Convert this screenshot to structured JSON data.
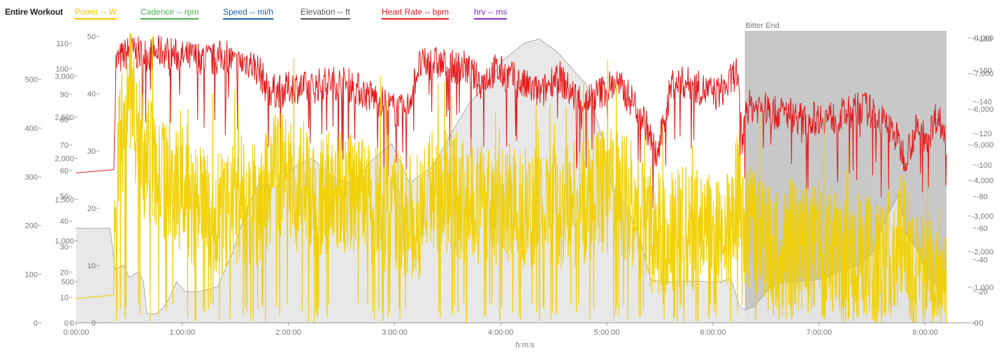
{
  "legend": {
    "title": "Entire Workout",
    "items": [
      {
        "label": "Power  -- W",
        "color": "#f5c400"
      },
      {
        "label": "Cadence  -- rpm",
        "color": "#4caf50"
      },
      {
        "label": "Speed  -- mi/h",
        "color": "#1f5fa8"
      },
      {
        "label": "Elevation  -- ft",
        "color": "#555555"
      },
      {
        "label": "Heart Rate  -- bpm",
        "color": "#e31a1c"
      },
      {
        "label": "hrv  -- ms",
        "color": "#7e2fc4"
      }
    ]
  },
  "chart_data": {
    "type": "line",
    "xlabel": "h:m:s",
    "x_unit": "seconds elapsed",
    "x_ticks": [
      "0:00:00",
      "1:00:00",
      "2:00:00",
      "3:00:00",
      "4:00:00",
      "5:00:00",
      "6:00:00",
      "7:00:00",
      "8:00:00"
    ],
    "xlim": [
      0,
      29520
    ],
    "highlight": {
      "label": "Bitter End",
      "start": 22680,
      "end": 29520,
      "color": "#c8c8c8"
    },
    "axes": {
      "power": {
        "ticks": [
          "0",
          "100",
          "200",
          "300",
          "400",
          "500"
        ],
        "range": [
          0,
          600
        ]
      },
      "cadence": {
        "ticks": [
          "0",
          "10",
          "20",
          "30",
          "40",
          "50",
          "60",
          "70",
          "80",
          "90",
          "100",
          "110"
        ],
        "range": [
          0,
          115
        ]
      },
      "elevation": {
        "ticks": [
          "0",
          "500",
          "1,000",
          "1,500",
          "2,000",
          "2,500",
          "3,000"
        ],
        "range": [
          0,
          3550
        ]
      },
      "speed": {
        "ticks": [
          "0",
          "10",
          "20",
          "30",
          "40",
          "50"
        ],
        "range": [
          0,
          51
        ]
      },
      "heart_rate": {
        "ticks": [
          "0",
          "20",
          "40",
          "60",
          "80",
          "100",
          "120",
          "140",
          "160",
          "180"
        ],
        "range": [
          0,
          185
        ]
      },
      "hrv": {
        "ticks": [
          "0",
          "1,000",
          "2,000",
          "3,000",
          "4,000",
          "5,000",
          "6,000",
          "7,000",
          "8,000"
        ],
        "range": [
          0,
          8200
        ]
      }
    },
    "series": [
      {
        "name": "Elevation",
        "axis": "elevation",
        "color": "#9a9a9a",
        "fill": "#e6e6e6",
        "points": [
          [
            0,
            1150
          ],
          [
            1150,
            1150
          ],
          [
            1320,
            650
          ],
          [
            1600,
            700
          ],
          [
            1800,
            550
          ],
          [
            2100,
            620
          ],
          [
            2280,
            500
          ],
          [
            2400,
            110
          ],
          [
            2700,
            110
          ],
          [
            2950,
            180
          ],
          [
            3150,
            300
          ],
          [
            3400,
            500
          ],
          [
            3700,
            380
          ],
          [
            4200,
            380
          ],
          [
            4800,
            440
          ],
          [
            5300,
            850
          ],
          [
            5800,
            1400
          ],
          [
            6200,
            1700
          ],
          [
            6800,
            1650
          ],
          [
            7400,
            1900
          ],
          [
            8000,
            2000
          ],
          [
            8600,
            1800
          ],
          [
            9200,
            1700
          ],
          [
            9600,
            1800
          ],
          [
            10100,
            2000
          ],
          [
            10700,
            2180
          ],
          [
            11000,
            1950
          ],
          [
            11300,
            1700
          ],
          [
            11700,
            1800
          ],
          [
            12100,
            1900
          ],
          [
            12800,
            2350
          ],
          [
            13300,
            2650
          ],
          [
            13900,
            2900
          ],
          [
            14500,
            3200
          ],
          [
            15200,
            3400
          ],
          [
            15700,
            3450
          ],
          [
            16300,
            3300
          ],
          [
            16800,
            3100
          ],
          [
            17300,
            2900
          ],
          [
            17800,
            2300
          ],
          [
            18200,
            1650
          ],
          [
            18700,
            1400
          ],
          [
            19100,
            1050
          ],
          [
            19500,
            520
          ],
          [
            19900,
            500
          ],
          [
            20400,
            500
          ],
          [
            20900,
            510
          ],
          [
            21400,
            500
          ],
          [
            21900,
            500
          ],
          [
            22200,
            550
          ],
          [
            22500,
            200
          ],
          [
            22700,
            160
          ],
          [
            23000,
            200
          ],
          [
            23500,
            420
          ],
          [
            24000,
            500
          ],
          [
            24500,
            500
          ],
          [
            25000,
            520
          ],
          [
            25500,
            560
          ],
          [
            26000,
            650
          ],
          [
            26500,
            700
          ],
          [
            27000,
            850
          ],
          [
            27500,
            1300
          ],
          [
            27900,
            1560
          ],
          [
            28150,
            1100
          ],
          [
            28600,
            850
          ],
          [
            28900,
            550
          ],
          [
            29200,
            450
          ],
          [
            29520,
            380
          ]
        ]
      },
      {
        "name": "Heart Rate",
        "axis": "heart_rate",
        "color": "#e31a1c",
        "points": [
          [
            0,
            95
          ],
          [
            1280,
            97
          ],
          [
            1300,
            125
          ],
          [
            1350,
            165
          ],
          [
            1800,
            172
          ],
          [
            2200,
            170
          ],
          [
            2400,
            170
          ],
          [
            3000,
            172
          ],
          [
            3600,
            168
          ],
          [
            4000,
            168
          ],
          [
            4300,
            168
          ],
          [
            4600,
            166
          ],
          [
            5100,
            170
          ],
          [
            5400,
            163
          ],
          [
            5800,
            166
          ],
          [
            6200,
            160
          ],
          [
            6500,
            147
          ],
          [
            7000,
            147
          ],
          [
            7400,
            150
          ],
          [
            7900,
            148
          ],
          [
            8400,
            152
          ],
          [
            9000,
            152
          ],
          [
            9400,
            150
          ],
          [
            9800,
            145
          ],
          [
            10200,
            142
          ],
          [
            10800,
            135
          ],
          [
            11200,
            133
          ],
          [
            11600,
            162
          ],
          [
            12100,
            165
          ],
          [
            12700,
            162
          ],
          [
            13200,
            162
          ],
          [
            13700,
            152
          ],
          [
            14200,
            160
          ],
          [
            14800,
            155
          ],
          [
            15200,
            150
          ],
          [
            15800,
            145
          ],
          [
            16300,
            158
          ],
          [
            16800,
            145
          ],
          [
            17200,
            140
          ],
          [
            17700,
            145
          ],
          [
            18300,
            152
          ],
          [
            18900,
            140
          ],
          [
            19300,
            127
          ],
          [
            19700,
            104
          ],
          [
            20200,
            152
          ],
          [
            20700,
            152
          ],
          [
            21200,
            148
          ],
          [
            21700,
            145
          ],
          [
            22100,
            150
          ],
          [
            22400,
            160
          ],
          [
            22620,
            108
          ],
          [
            22680,
            137
          ],
          [
            23200,
            137
          ],
          [
            23700,
            133
          ],
          [
            24200,
            133
          ],
          [
            24700,
            128
          ],
          [
            25200,
            130
          ],
          [
            25700,
            130
          ],
          [
            26200,
            133
          ],
          [
            26700,
            137
          ],
          [
            27200,
            130
          ],
          [
            27700,
            122
          ],
          [
            28100,
            105
          ],
          [
            28500,
            122
          ],
          [
            28900,
            118
          ],
          [
            29200,
            132
          ],
          [
            29520,
            116
          ]
        ]
      },
      {
        "name": "Power",
        "axis": "power",
        "color": "#f0d000",
        "points": [
          [
            0,
            50
          ],
          [
            1280,
            57
          ],
          [
            1300,
            300
          ],
          [
            1500,
            380
          ],
          [
            1700,
            420
          ],
          [
            1900,
            500
          ],
          [
            2100,
            340
          ],
          [
            2300,
            340
          ],
          [
            2500,
            330
          ],
          [
            2700,
            320
          ],
          [
            2900,
            300
          ],
          [
            3100,
            290
          ],
          [
            3400,
            280
          ],
          [
            3800,
            260
          ],
          [
            4200,
            230
          ],
          [
            4600,
            240
          ],
          [
            5000,
            225
          ],
          [
            5400,
            245
          ],
          [
            5800,
            240
          ],
          [
            6200,
            235
          ],
          [
            6700,
            300
          ],
          [
            7100,
            310
          ],
          [
            7500,
            275
          ],
          [
            7900,
            265
          ],
          [
            8400,
            260
          ],
          [
            8900,
            275
          ],
          [
            9300,
            265
          ],
          [
            9700,
            250
          ],
          [
            10200,
            240
          ],
          [
            10700,
            230
          ],
          [
            11100,
            220
          ],
          [
            11600,
            215
          ],
          [
            12100,
            285
          ],
          [
            12600,
            265
          ],
          [
            13100,
            255
          ],
          [
            13700,
            250
          ],
          [
            14200,
            235
          ],
          [
            14800,
            245
          ],
          [
            15300,
            235
          ],
          [
            15800,
            235
          ],
          [
            16300,
            240
          ],
          [
            16800,
            235
          ],
          [
            17300,
            245
          ],
          [
            17800,
            270
          ],
          [
            18300,
            270
          ],
          [
            18800,
            250
          ],
          [
            19300,
            200
          ],
          [
            19800,
            180
          ],
          [
            20300,
            200
          ],
          [
            20800,
            200
          ],
          [
            21300,
            180
          ],
          [
            21800,
            175
          ],
          [
            22200,
            200
          ],
          [
            22500,
            290
          ],
          [
            22660,
            130
          ],
          [
            22700,
            200
          ],
          [
            23200,
            180
          ],
          [
            23700,
            140
          ],
          [
            24200,
            180
          ],
          [
            24700,
            150
          ],
          [
            25200,
            165
          ],
          [
            25700,
            150
          ],
          [
            26200,
            120
          ],
          [
            26700,
            145
          ],
          [
            27200,
            115
          ],
          [
            27700,
            165
          ],
          [
            28100,
            190
          ],
          [
            28400,
            95
          ],
          [
            28800,
            105
          ],
          [
            29200,
            125
          ],
          [
            29520,
            100
          ]
        ]
      }
    ]
  }
}
